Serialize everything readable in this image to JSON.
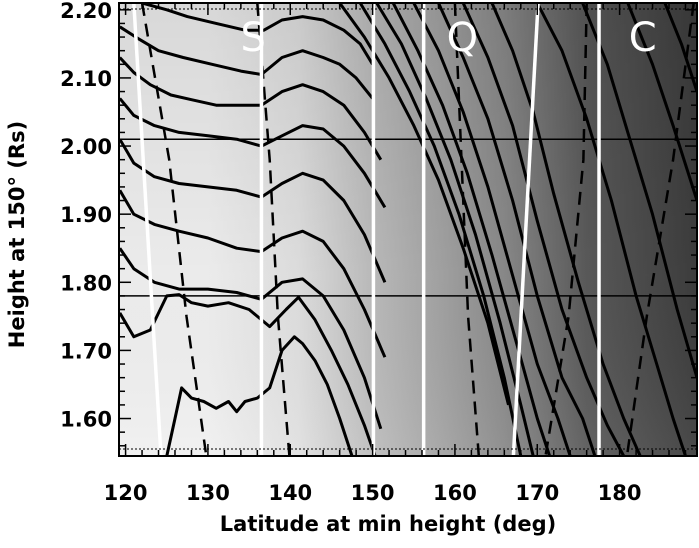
{
  "chart_data": {
    "type": "contour",
    "title": "",
    "xlabel": "Latitude at min height (deg)",
    "ylabel": "Height at 150° (Rs)",
    "xlim": [
      119.2,
      189.4
    ],
    "ylim": [
      1.545,
      2.21
    ],
    "x_ticks": [
      120,
      130,
      140,
      150,
      160,
      170,
      180
    ],
    "x_tick_labels": [
      "120",
      "130",
      "140",
      "150",
      "160",
      "170",
      "180"
    ],
    "y_ticks": [
      1.6,
      1.7,
      1.8,
      1.9,
      2.0,
      2.1,
      2.2
    ],
    "y_tick_labels": [
      "1.60",
      "1.70",
      "1.80",
      "1.90",
      "2.00",
      "2.10",
      "2.20"
    ],
    "horizontal_reference_lines": [
      2.01,
      1.78
    ],
    "region_labels": [
      {
        "text": "S",
        "x": 135.5,
        "y": 2.16
      },
      {
        "text": "Q",
        "x": 160.9,
        "y": 2.16
      },
      {
        "text": "C",
        "x": 182.8,
        "y": 2.16
      }
    ],
    "white_boundary_lines": [
      {
        "x": [
          121.0,
          124.3
        ],
        "y": [
          2.21,
          1.545
        ]
      },
      {
        "x": [
          136.5,
          136.5
        ],
        "y": [
          2.21,
          1.545
        ]
      },
      {
        "x": [
          150.1,
          150.1
        ],
        "y": [
          2.21,
          1.545
        ]
      },
      {
        "x": [
          156.2,
          156.2
        ],
        "y": [
          2.21,
          1.545
        ]
      },
      {
        "x": [
          170.1,
          167.1
        ],
        "y": [
          2.21,
          1.545
        ]
      },
      {
        "x": [
          177.5,
          177.5
        ],
        "y": [
          2.21,
          1.545
        ]
      }
    ],
    "dashed_boundary_lines": [
      {
        "x": [
          122.0,
          125.3,
          127.4,
          129.8
        ],
        "y": [
          2.21,
          1.98,
          1.75,
          1.545
        ]
      },
      {
        "x": [
          136.0,
          137.5,
          138.5,
          139.9
        ],
        "y": [
          2.21,
          1.98,
          1.75,
          1.545
        ]
      },
      {
        "x": [
          160.0,
          160.8,
          161.6,
          162.9
        ],
        "y": [
          2.21,
          1.98,
          1.75,
          1.545
        ]
      },
      {
        "x": [
          176.0,
          175.6,
          173.8,
          171.0
        ],
        "y": [
          2.21,
          1.98,
          1.75,
          1.545
        ]
      },
      {
        "x": [
          189.0,
          186.5,
          183.3,
          180.9
        ],
        "y": [
          2.21,
          1.98,
          1.75,
          1.545
        ]
      }
    ],
    "contours": [
      {
        "x": [
          122.0,
          125.0,
          127.5,
          131.0,
          134.5,
          136.8,
          139.0,
          141.5,
          144.0,
          146.5,
          148.5,
          150.0
        ],
        "y": [
          2.21,
          2.2,
          2.19,
          2.18,
          2.17,
          2.17,
          2.185,
          2.19,
          2.185,
          2.17,
          2.15,
          2.12
        ]
      },
      {
        "x": [
          119.3,
          121.5,
          124.0,
          127.0,
          130.5,
          134.0,
          136.5,
          139.0,
          141.5,
          144.0,
          146.0,
          148.0,
          150.0
        ],
        "y": [
          2.175,
          2.158,
          2.14,
          2.13,
          2.12,
          2.11,
          2.105,
          2.13,
          2.14,
          2.13,
          2.12,
          2.1,
          2.07
        ]
      },
      {
        "x": [
          119.3,
          121.0,
          123.0,
          125.5,
          128.0,
          131.0,
          134.0,
          136.5,
          139.0,
          141.5,
          144.0,
          146.5,
          149.0,
          151.0
        ],
        "y": [
          2.13,
          2.108,
          2.09,
          2.075,
          2.068,
          2.06,
          2.06,
          2.06,
          2.08,
          2.09,
          2.08,
          2.06,
          2.02,
          1.98
        ]
      },
      {
        "x": [
          119.3,
          121.0,
          123.5,
          126.5,
          130.0,
          133.5,
          136.5,
          139.0,
          141.5,
          144.0,
          146.5,
          149.0,
          151.5
        ],
        "y": [
          2.07,
          2.045,
          2.03,
          2.02,
          2.015,
          2.01,
          2.0,
          2.015,
          2.03,
          2.025,
          2.0,
          1.96,
          1.91
        ]
      },
      {
        "x": [
          119.3,
          121.0,
          123.5,
          126.5,
          130.0,
          133.5,
          136.5,
          139.0,
          141.5,
          144.0,
          146.5,
          149.0,
          151.5
        ],
        "y": [
          2.01,
          1.975,
          1.955,
          1.945,
          1.94,
          1.935,
          1.925,
          1.945,
          1.96,
          1.95,
          1.92,
          1.87,
          1.8
        ]
      },
      {
        "x": [
          119.3,
          121.0,
          123.5,
          126.5,
          130.0,
          133.5,
          136.5,
          139.0,
          141.5,
          144.0,
          146.5,
          149.0,
          151.5
        ],
        "y": [
          1.935,
          1.9,
          1.885,
          1.875,
          1.865,
          1.85,
          1.845,
          1.865,
          1.875,
          1.86,
          1.82,
          1.76,
          1.69
        ]
      },
      {
        "x": [
          119.3,
          121.0,
          123.5,
          126.5,
          130.0,
          133.5,
          136.5,
          139.0,
          141.5,
          144.0,
          146.5,
          149.0,
          151.0
        ],
        "y": [
          1.85,
          1.82,
          1.8,
          1.79,
          1.79,
          1.785,
          1.775,
          1.8,
          1.805,
          1.78,
          1.73,
          1.66,
          1.585
        ]
      },
      {
        "x": [
          119.3,
          121.0,
          123.0,
          125.0,
          126.5,
          128.0,
          130.0,
          132.5,
          135.0,
          137.5,
          139.5,
          141.0,
          143.0,
          145.0,
          147.0,
          149.0,
          150.3
        ],
        "y": [
          1.755,
          1.72,
          1.73,
          1.78,
          1.782,
          1.77,
          1.765,
          1.77,
          1.76,
          1.735,
          1.76,
          1.778,
          1.745,
          1.7,
          1.65,
          1.59,
          1.545
        ]
      },
      {
        "x": [
          125.0,
          126.0,
          126.8,
          128.0,
          129.5,
          131.0,
          132.5,
          133.5,
          134.5,
          136.0,
          137.5,
          139.0,
          140.5,
          141.5,
          143.0,
          144.5,
          146.0,
          147.5
        ],
        "y": [
          1.545,
          1.6,
          1.645,
          1.63,
          1.625,
          1.615,
          1.625,
          1.61,
          1.625,
          1.63,
          1.645,
          1.7,
          1.72,
          1.71,
          1.685,
          1.65,
          1.6,
          1.545
        ]
      },
      {
        "x": [
          146.0,
          149.0,
          152.0,
          155.0,
          158.0,
          161.0,
          164.0,
          166.5
        ],
        "y": [
          2.21,
          2.16,
          2.1,
          2.03,
          1.95,
          1.85,
          1.74,
          1.62
        ]
      },
      {
        "x": [
          148.5,
          151.5,
          154.5,
          157.5,
          160.5,
          163.5,
          166.0,
          168.0
        ],
        "y": [
          2.21,
          2.15,
          2.08,
          2.0,
          1.9,
          1.78,
          1.66,
          1.545
        ]
      },
      {
        "x": [
          150.5,
          153.5,
          156.5,
          159.5,
          162.5,
          165.5,
          168.0,
          169.5
        ],
        "y": [
          2.21,
          2.15,
          2.07,
          1.98,
          1.87,
          1.74,
          1.62,
          1.545
        ]
      },
      {
        "x": [
          152.5,
          155.5,
          158.5,
          161.5,
          164.5,
          167.5,
          170.0,
          171.5
        ],
        "y": [
          2.21,
          2.14,
          2.06,
          1.96,
          1.84,
          1.71,
          1.6,
          1.545
        ]
      },
      {
        "x": [
          155.0,
          158.0,
          161.0,
          164.0,
          167.0,
          170.0,
          172.5,
          174.0
        ],
        "y": [
          2.21,
          2.14,
          2.05,
          1.94,
          1.81,
          1.68,
          1.6,
          1.545
        ]
      },
      {
        "x": [
          158.0,
          161.0,
          164.0,
          167.0,
          170.0,
          173.0,
          175.5,
          177.0
        ],
        "y": [
          2.21,
          2.13,
          2.04,
          1.92,
          1.78,
          1.66,
          1.6,
          1.545
        ]
      },
      {
        "x": [
          161.0,
          164.0,
          167.0,
          170.0,
          173.0,
          176.0,
          178.5,
          180.5
        ],
        "y": [
          2.21,
          2.13,
          2.03,
          1.89,
          1.76,
          1.66,
          1.59,
          1.545
        ]
      },
      {
        "x": [
          164.5,
          167.0,
          169.5,
          172.0,
          175.0,
          178.0,
          180.5,
          182.5
        ],
        "y": [
          2.21,
          2.14,
          2.05,
          1.93,
          1.8,
          1.68,
          1.6,
          1.545
        ]
      },
      {
        "x": [
          170.0,
          173.0,
          176.0,
          179.0,
          182.0,
          184.5,
          186.5,
          188.0
        ],
        "y": [
          2.21,
          2.14,
          2.04,
          1.92,
          1.78,
          1.68,
          1.6,
          1.545
        ]
      },
      {
        "x": [
          175.5,
          178.5,
          181.0,
          184.0,
          187.0,
          189.4
        ],
        "y": [
          2.21,
          2.12,
          2.02,
          1.9,
          1.76,
          1.66
        ]
      },
      {
        "x": [
          181.0,
          184.0,
          186.5,
          189.4
        ],
        "y": [
          2.21,
          2.12,
          2.03,
          1.92
        ]
      },
      {
        "x": [
          185.5,
          187.5,
          189.4
        ],
        "y": [
          2.21,
          2.15,
          2.08
        ]
      }
    ],
    "shading": {
      "colors": [
        "#f0f0f0",
        "#e0e0e0",
        "#bcbcbc",
        "#a4a4a4",
        "#8a8a8a",
        "#5a5a5a",
        "#3e3e3e"
      ],
      "color_x": [
        130,
        141,
        150,
        158,
        166,
        176,
        189
      ]
    }
  }
}
